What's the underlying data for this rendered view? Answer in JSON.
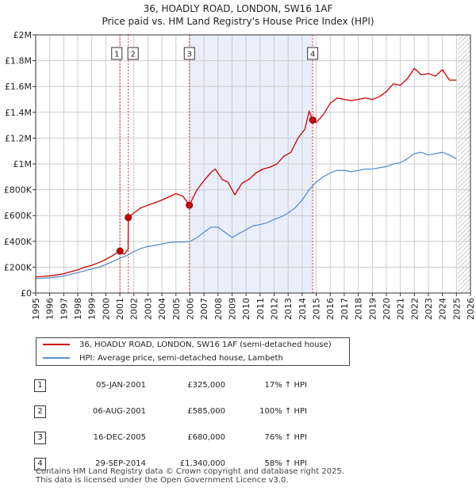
{
  "title": "36, HOADLY ROAD, LONDON, SW16 1AF",
  "subtitle": "Price paid vs. HM Land Registry's House Price Index (HPI)",
  "legend": {
    "property": "36, HOADLY ROAD, LONDON, SW16 1AF (semi-detached house)",
    "hpi": "HPI: Average price, semi-detached house, Lambeth"
  },
  "colors": {
    "property": "#cc0000",
    "hpi": "#5b8fd0",
    "shade": "#e8eefa",
    "grid": "#cccccc"
  },
  "sales": [
    {
      "num": "1",
      "date": "05-JAN-2001",
      "price": "£325,000",
      "hpi": "17% ↑ HPI"
    },
    {
      "num": "2",
      "date": "06-AUG-2001",
      "price": "£585,000",
      "hpi": "100% ↑ HPI"
    },
    {
      "num": "3",
      "date": "16-DEC-2005",
      "price": "£680,000",
      "hpi": "76% ↑ HPI"
    },
    {
      "num": "4",
      "date": "29-SEP-2014",
      "price": "£1,340,000",
      "hpi": "58% ↑ HPI"
    }
  ],
  "footer": {
    "line1": "Contains HM Land Registry data © Crown copyright and database right 2025.",
    "line2": "This data is licensed under the Open Government Licence v3.0."
  },
  "chart_data": {
    "type": "line",
    "title": "36, HOADLY ROAD, LONDON, SW16 1AF",
    "subtitle": "Price paid vs. HM Land Registry's House Price Index (HPI)",
    "xlabel": "",
    "ylabel": "",
    "xlim": [
      1995,
      2026
    ],
    "ylim": [
      0,
      2000000
    ],
    "x_ticks": [
      1995,
      1996,
      1997,
      1998,
      1999,
      2000,
      2001,
      2002,
      2003,
      2004,
      2005,
      2006,
      2007,
      2008,
      2009,
      2010,
      2011,
      2012,
      2013,
      2014,
      2015,
      2016,
      2017,
      2018,
      2019,
      2020,
      2021,
      2022,
      2023,
      2024,
      2025,
      2026
    ],
    "y_ticks": [
      {
        "value": 0,
        "label": "£0"
      },
      {
        "value": 200000,
        "label": "£200K"
      },
      {
        "value": 400000,
        "label": "£400K"
      },
      {
        "value": 600000,
        "label": "£600K"
      },
      {
        "value": 800000,
        "label": "£800K"
      },
      {
        "value": 1000000,
        "label": "£1M"
      },
      {
        "value": 1200000,
        "label": "£1.2M"
      },
      {
        "value": 1400000,
        "label": "£1.4M"
      },
      {
        "value": 1600000,
        "label": "£1.6M"
      },
      {
        "value": 1800000,
        "label": "£1.8M"
      },
      {
        "value": 2000000,
        "label": "£2M"
      }
    ],
    "grid": true,
    "shaded_range": [
      2005.96,
      2014.75
    ],
    "hatched_from": 2025.1,
    "sale_markers": [
      {
        "label": "1",
        "x": 2001.01,
        "y": 325000
      },
      {
        "label": "2",
        "x": 2001.6,
        "y": 585000
      },
      {
        "label": "3",
        "x": 2005.96,
        "y": 680000
      },
      {
        "label": "4",
        "x": 2014.75,
        "y": 1340000
      }
    ],
    "series": [
      {
        "name": "36, HOADLY ROAD, LONDON, SW16 1AF (semi-detached house)",
        "x": [
          1995,
          1995.5,
          1996,
          1996.5,
          1997,
          1997.5,
          1998,
          1998.5,
          1999,
          1999.5,
          2000,
          2000.5,
          2001.01,
          2001.3,
          2001.59,
          2001.6,
          2002,
          2002.5,
          2003,
          2003.5,
          2004,
          2004.5,
          2005,
          2005.5,
          2005.96,
          2006.5,
          2007,
          2007.5,
          2007.8,
          2008.3,
          2008.7,
          2009.2,
          2009.7,
          2010.2,
          2010.7,
          2011.2,
          2011.7,
          2012.2,
          2012.7,
          2013.2,
          2013.7,
          2014.2,
          2014.5,
          2014.75,
          2015,
          2015.5,
          2016,
          2016.5,
          2017,
          2017.5,
          2018,
          2018.5,
          2019,
          2019.5,
          2020,
          2020.5,
          2021,
          2021.5,
          2022,
          2022.5,
          2023,
          2023.5,
          2024,
          2024.5,
          2025
        ],
        "values": [
          125000,
          128000,
          133000,
          140000,
          150000,
          165000,
          180000,
          200000,
          215000,
          235000,
          260000,
          290000,
          325000,
          300000,
          340000,
          585000,
          620000,
          660000,
          680000,
          700000,
          720000,
          745000,
          770000,
          750000,
          680000,
          800000,
          870000,
          935000,
          960000,
          880000,
          860000,
          760000,
          850000,
          880000,
          930000,
          960000,
          975000,
          1000000,
          1060000,
          1090000,
          1200000,
          1270000,
          1410000,
          1340000,
          1320000,
          1380000,
          1470000,
          1510000,
          1500000,
          1490000,
          1500000,
          1510000,
          1500000,
          1520000,
          1560000,
          1620000,
          1610000,
          1660000,
          1740000,
          1690000,
          1700000,
          1680000,
          1730000,
          1650000,
          1650000
        ]
      },
      {
        "name": "HPI: Average price, semi-detached house, Lambeth",
        "x": [
          1995,
          1995.5,
          1996,
          1996.5,
          1997,
          1997.5,
          1998,
          1998.5,
          1999,
          1999.5,
          2000,
          2000.5,
          2001,
          2001.5,
          2002,
          2002.5,
          2003,
          2003.5,
          2004,
          2004.5,
          2005,
          2005.5,
          2006,
          2006.5,
          2007,
          2007.5,
          2008,
          2008.5,
          2009,
          2009.5,
          2010,
          2010.5,
          2011,
          2011.5,
          2012,
          2012.5,
          2013,
          2013.5,
          2014,
          2014.5,
          2015,
          2015.5,
          2016,
          2016.5,
          2017,
          2017.5,
          2018,
          2018.5,
          2019,
          2019.5,
          2020,
          2020.5,
          2021,
          2021.5,
          2022,
          2022.5,
          2023,
          2023.5,
          2024,
          2024.5,
          2025
        ],
        "values": [
          112000,
          114000,
          118000,
          124000,
          132000,
          145000,
          158000,
          172000,
          185000,
          200000,
          220000,
          245000,
          270000,
          290000,
          320000,
          345000,
          360000,
          370000,
          380000,
          390000,
          395000,
          395000,
          400000,
          430000,
          470000,
          510000,
          510000,
          470000,
          430000,
          460000,
          490000,
          520000,
          530000,
          545000,
          570000,
          590000,
          620000,
          660000,
          720000,
          800000,
          860000,
          900000,
          930000,
          950000,
          950000,
          940000,
          950000,
          960000,
          960000,
          970000,
          980000,
          1000000,
          1010000,
          1040000,
          1080000,
          1090000,
          1070000,
          1080000,
          1090000,
          1070000,
          1040000
        ]
      }
    ]
  }
}
